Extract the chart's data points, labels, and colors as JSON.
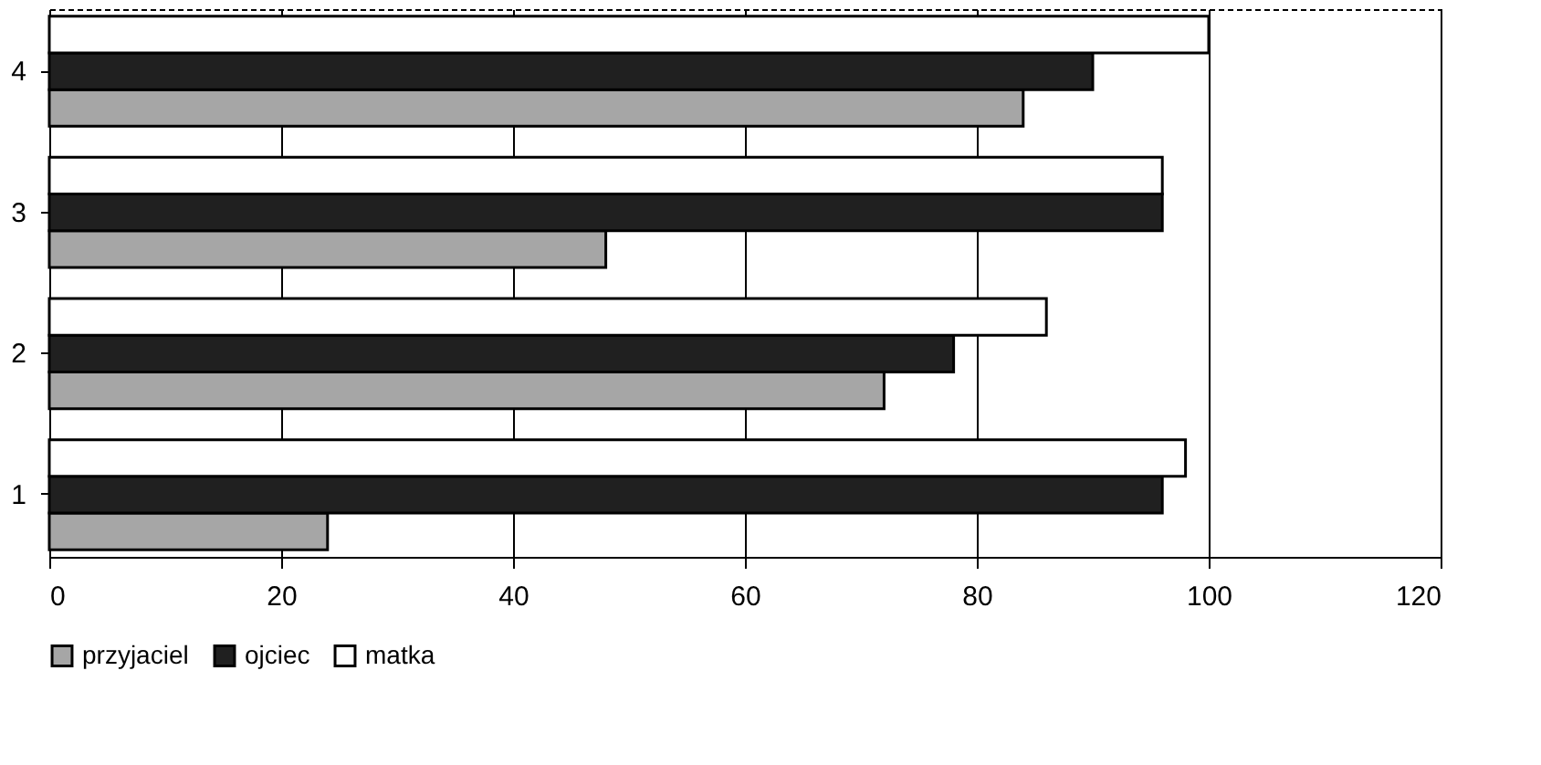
{
  "chart_data": {
    "type": "bar",
    "orientation": "horizontal",
    "categories": [
      "4",
      "3",
      "2",
      "1"
    ],
    "series": [
      {
        "name": "przyjaciel",
        "color": "#a6a6a6",
        "values": [
          84,
          48,
          72,
          24
        ]
      },
      {
        "name": "ojciec",
        "color": "#202020",
        "values": [
          90,
          96,
          78,
          96
        ]
      },
      {
        "name": "matka",
        "color": "#ffffff",
        "values": [
          100,
          96,
          86,
          98
        ]
      }
    ],
    "xlim": [
      0,
      120
    ],
    "xticks": [
      0,
      20,
      40,
      60,
      80,
      100,
      120
    ],
    "grid": "x",
    "legend": "bottom"
  }
}
